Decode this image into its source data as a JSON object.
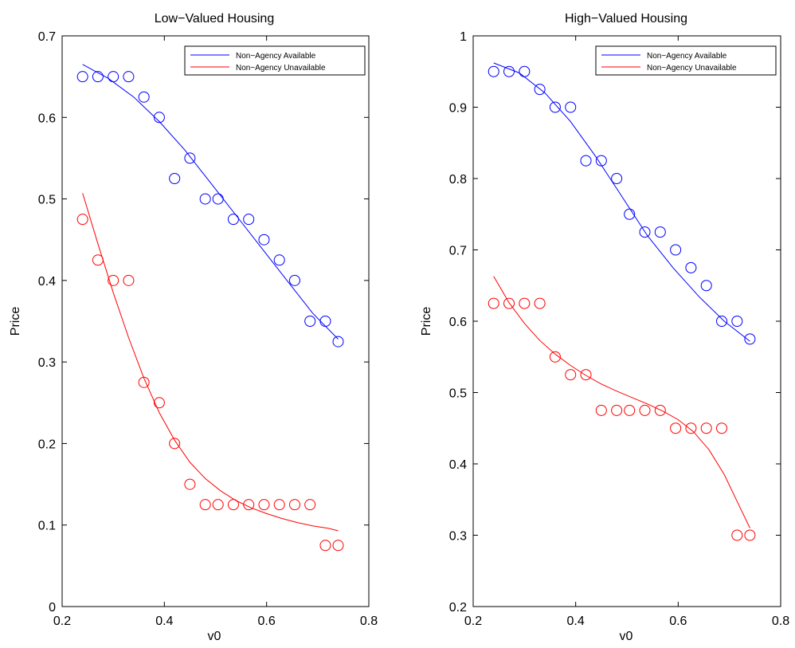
{
  "chart_data": [
    {
      "type": "scatter",
      "title": "Low−Valued Housing",
      "xlabel": "v0",
      "ylabel": "Price",
      "xlim": [
        0.2,
        0.8
      ],
      "ylim": [
        0,
        0.7
      ],
      "xticks": [
        0.2,
        0.4,
        0.6,
        0.8
      ],
      "yticks": [
        0,
        0.1,
        0.2,
        0.3,
        0.4,
        0.5,
        0.6,
        0.7
      ],
      "xtick_labels": [
        "0.2",
        "0.4",
        "0.6",
        "0.8"
      ],
      "ytick_labels": [
        "0",
        "0.1",
        "0.2",
        "0.3",
        "0.4",
        "0.5",
        "0.6",
        "0.7"
      ],
      "grid": false,
      "legend_position": "top-right",
      "series": [
        {
          "name": "Non−Agency Available",
          "color": "#0000ff",
          "x": [
            0.24,
            0.27,
            0.3,
            0.33,
            0.36,
            0.39,
            0.42,
            0.45,
            0.48,
            0.505,
            0.535,
            0.565,
            0.595,
            0.625,
            0.655,
            0.685,
            0.715,
            0.74
          ],
          "y": [
            0.65,
            0.65,
            0.65,
            0.65,
            0.625,
            0.6,
            0.525,
            0.55,
            0.5,
            0.5,
            0.475,
            0.475,
            0.45,
            0.425,
            0.4,
            0.35,
            0.35,
            0.325
          ],
          "fit_x": [
            0.24,
            0.29,
            0.34,
            0.39,
            0.44,
            0.49,
            0.54,
            0.59,
            0.64,
            0.69,
            0.74
          ],
          "fit_y": [
            0.665,
            0.648,
            0.625,
            0.595,
            0.56,
            0.52,
            0.48,
            0.44,
            0.4,
            0.36,
            0.328
          ]
        },
        {
          "name": "Non−Agency Unavailable",
          "color": "#ff0000",
          "x": [
            0.24,
            0.27,
            0.3,
            0.33,
            0.36,
            0.39,
            0.42,
            0.45,
            0.48,
            0.505,
            0.535,
            0.565,
            0.595,
            0.625,
            0.655,
            0.685,
            0.715,
            0.74
          ],
          "y": [
            0.475,
            0.425,
            0.4,
            0.4,
            0.275,
            0.25,
            0.2,
            0.15,
            0.125,
            0.125,
            0.125,
            0.125,
            0.125,
            0.125,
            0.125,
            0.125,
            0.075,
            0.075
          ],
          "fit_x": [
            0.24,
            0.27,
            0.3,
            0.33,
            0.36,
            0.39,
            0.42,
            0.45,
            0.48,
            0.51,
            0.54,
            0.57,
            0.6,
            0.63,
            0.66,
            0.69,
            0.72,
            0.74
          ],
          "fit_y": [
            0.507,
            0.445,
            0.385,
            0.33,
            0.28,
            0.238,
            0.204,
            0.177,
            0.157,
            0.142,
            0.13,
            0.121,
            0.114,
            0.108,
            0.103,
            0.099,
            0.096,
            0.093
          ]
        }
      ]
    },
    {
      "type": "scatter",
      "title": "High−Valued Housing",
      "xlabel": "v0",
      "ylabel": "Price",
      "xlim": [
        0.2,
        0.8
      ],
      "ylim": [
        0.2,
        1
      ],
      "xticks": [
        0.2,
        0.4,
        0.6,
        0.8
      ],
      "yticks": [
        0.2,
        0.3,
        0.4,
        0.5,
        0.6,
        0.7,
        0.8,
        0.9,
        1
      ],
      "xtick_labels": [
        "0.2",
        "0.4",
        "0.6",
        "0.8"
      ],
      "ytick_labels": [
        "0.2",
        "0.3",
        "0.4",
        "0.5",
        "0.6",
        "0.7",
        "0.8",
        "0.9",
        "1"
      ],
      "grid": false,
      "legend_position": "top-right",
      "series": [
        {
          "name": "Non−Agency Available",
          "color": "#0000ff",
          "x": [
            0.24,
            0.27,
            0.3,
            0.33,
            0.36,
            0.39,
            0.42,
            0.45,
            0.48,
            0.505,
            0.535,
            0.565,
            0.595,
            0.625,
            0.655,
            0.685,
            0.715,
            0.74
          ],
          "y": [
            0.95,
            0.95,
            0.95,
            0.925,
            0.9,
            0.9,
            0.825,
            0.825,
            0.8,
            0.75,
            0.725,
            0.725,
            0.7,
            0.675,
            0.65,
            0.6,
            0.6,
            0.575
          ],
          "fit_x": [
            0.24,
            0.29,
            0.34,
            0.39,
            0.44,
            0.49,
            0.54,
            0.59,
            0.64,
            0.69,
            0.74
          ],
          "fit_y": [
            0.962,
            0.948,
            0.92,
            0.88,
            0.83,
            0.775,
            0.72,
            0.675,
            0.635,
            0.6,
            0.572
          ]
        },
        {
          "name": "Non−Agency Unavailable",
          "color": "#ff0000",
          "x": [
            0.24,
            0.27,
            0.3,
            0.33,
            0.36,
            0.39,
            0.42,
            0.45,
            0.48,
            0.505,
            0.535,
            0.565,
            0.595,
            0.625,
            0.655,
            0.685,
            0.715,
            0.74
          ],
          "y": [
            0.625,
            0.625,
            0.625,
            0.625,
            0.55,
            0.525,
            0.525,
            0.475,
            0.475,
            0.475,
            0.475,
            0.475,
            0.45,
            0.45,
            0.45,
            0.45,
            0.3,
            0.3
          ],
          "fit_x": [
            0.24,
            0.27,
            0.3,
            0.33,
            0.36,
            0.39,
            0.42,
            0.45,
            0.48,
            0.51,
            0.54,
            0.57,
            0.6,
            0.63,
            0.66,
            0.69,
            0.72,
            0.74
          ],
          "fit_y": [
            0.663,
            0.626,
            0.597,
            0.573,
            0.554,
            0.538,
            0.524,
            0.512,
            0.502,
            0.493,
            0.484,
            0.474,
            0.462,
            0.445,
            0.42,
            0.385,
            0.34,
            0.31
          ]
        }
      ]
    }
  ]
}
